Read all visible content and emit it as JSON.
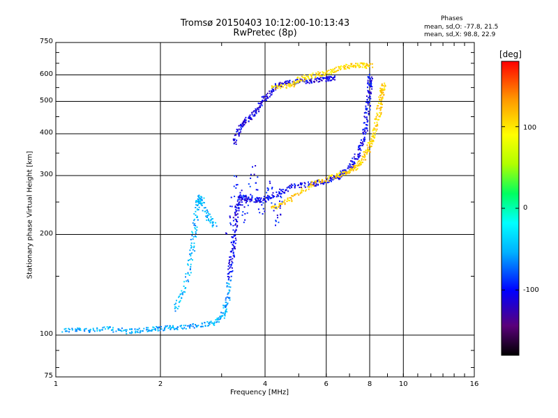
{
  "title_line1": "Tromsø 20150403 10:12:00-10:13:43",
  "title_line2": "RwPretec (8p)",
  "stats": {
    "heading": "Phases",
    "line_o": "mean, sd,O: -77.8, 21.5",
    "line_x": "mean, sd,X:  98.8, 22.9"
  },
  "colorbar": {
    "unit": "[deg]",
    "ticks": [
      "100",
      "0",
      "-100"
    ],
    "range": [
      -180,
      180
    ]
  },
  "chart_data": {
    "type": "scatter",
    "xlabel": "Frequency [MHz]",
    "ylabel": "Stationary phase Virtual Height [km]",
    "xscale": "log",
    "yscale": "log",
    "xlim": [
      1,
      16
    ],
    "ylim": [
      75,
      750
    ],
    "xticks": [
      "1",
      "2",
      "4",
      "6",
      "8",
      "10",
      "16"
    ],
    "yticks": [
      "75",
      "100",
      "200",
      "300",
      "400",
      "500",
      "600",
      "750"
    ],
    "grid": true,
    "color_variable": "phase [deg]",
    "traces": [
      {
        "id": "ground-o",
        "phase": -55,
        "density": 4,
        "points": [
          [
            1.05,
            104
          ],
          [
            1.2,
            104
          ],
          [
            1.4,
            105
          ],
          [
            1.6,
            103
          ],
          [
            1.8,
            104
          ],
          [
            2.0,
            105
          ],
          [
            2.2,
            106
          ],
          [
            2.5,
            107
          ],
          [
            2.8,
            109
          ],
          [
            3.0,
            114
          ],
          [
            3.1,
            125
          ],
          [
            3.15,
            145
          ]
        ]
      },
      {
        "id": "trace-o-low",
        "phase": -105,
        "density": 5,
        "points": [
          [
            3.15,
            150
          ],
          [
            3.2,
            175
          ],
          [
            3.25,
            200
          ],
          [
            3.3,
            240
          ],
          [
            3.4,
            260
          ],
          [
            3.6,
            255
          ],
          [
            3.9,
            255
          ],
          [
            4.3,
            265
          ],
          [
            4.8,
            280
          ],
          [
            5.5,
            285
          ],
          [
            6.0,
            290
          ],
          [
            6.5,
            300
          ],
          [
            7.0,
            320
          ],
          [
            7.4,
            350
          ],
          [
            7.7,
            400
          ],
          [
            7.85,
            470
          ],
          [
            7.95,
            540
          ],
          [
            8.0,
            600
          ]
        ]
      },
      {
        "id": "trace-o-upper",
        "phase": -110,
        "density": 5,
        "points": [
          [
            3.25,
            380
          ],
          [
            3.4,
            430
          ],
          [
            3.6,
            450
          ],
          [
            3.8,
            480
          ],
          [
            4.0,
            520
          ],
          [
            4.3,
            560
          ],
          [
            4.8,
            575
          ],
          [
            5.3,
            578
          ],
          [
            5.9,
            585
          ],
          [
            6.3,
            590
          ]
        ]
      },
      {
        "id": "trace-x-low",
        "phase": 110,
        "density": 5,
        "points": [
          [
            4.2,
            240
          ],
          [
            4.8,
            260
          ],
          [
            5.5,
            285
          ],
          [
            6.3,
            300
          ],
          [
            7.0,
            310
          ],
          [
            7.5,
            330
          ],
          [
            7.9,
            360
          ],
          [
            8.2,
            400
          ],
          [
            8.45,
            460
          ],
          [
            8.6,
            520
          ],
          [
            8.7,
            560
          ]
        ]
      },
      {
        "id": "trace-x-upper",
        "phase": 105,
        "density": 4,
        "points": [
          [
            4.2,
            550
          ],
          [
            4.7,
            560
          ],
          [
            5.0,
            585
          ],
          [
            5.5,
            600
          ],
          [
            6.0,
            610
          ],
          [
            6.5,
            630
          ],
          [
            7.0,
            640
          ],
          [
            7.5,
            645
          ],
          [
            8.0,
            640
          ]
        ]
      },
      {
        "id": "spread-f",
        "phase": -100,
        "density": 2,
        "points": [
          [
            3.1,
            200
          ],
          [
            3.3,
            300
          ],
          [
            3.5,
            220
          ],
          [
            3.7,
            320
          ],
          [
            3.9,
            230
          ],
          [
            4.1,
            290
          ],
          [
            4.3,
            215
          ],
          [
            4.5,
            270
          ]
        ]
      },
      {
        "id": "cyan-branch",
        "phase": -50,
        "density": 4,
        "points": [
          [
            2.2,
            120
          ],
          [
            2.35,
            140
          ],
          [
            2.45,
            175
          ],
          [
            2.5,
            210
          ],
          [
            2.55,
            250
          ],
          [
            2.6,
            260
          ],
          [
            2.7,
            230
          ],
          [
            2.85,
            215
          ]
        ]
      }
    ]
  }
}
